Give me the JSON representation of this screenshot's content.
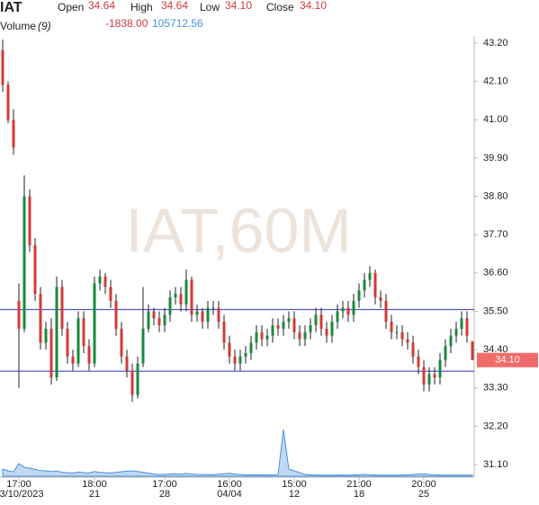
{
  "chart_data": {
    "type": "candlestick",
    "header": {
      "symbol": "IAT",
      "fields": [
        {
          "label": "Open",
          "value": "34.64"
        },
        {
          "label": "High",
          "value": "34.64"
        },
        {
          "label": "Low",
          "value": "34.10"
        },
        {
          "label": "Close",
          "value": "34.10"
        }
      ],
      "volume_label": "Volume",
      "volume_param": "(9)",
      "volume_values": [
        "-1838.00",
        "105712.56"
      ]
    },
    "watermark": "IAT,60M",
    "ylim": [
      31.1,
      43.2
    ],
    "yticks": [
      {
        "value": 43.2,
        "label": "43.20"
      },
      {
        "value": 42.1,
        "label": "42.10"
      },
      {
        "value": 41.0,
        "label": "41.00"
      },
      {
        "value": 39.9,
        "label": "39.90"
      },
      {
        "value": 38.8,
        "label": "38.80"
      },
      {
        "value": 37.7,
        "label": "37.70"
      },
      {
        "value": 36.6,
        "label": "36.60"
      },
      {
        "value": 35.5,
        "label": "35.50"
      },
      {
        "value": 34.4,
        "label": "34.40"
      },
      {
        "value": 33.3,
        "label": "33.30"
      },
      {
        "value": 32.2,
        "label": "32.20"
      },
      {
        "value": 31.1,
        "label": "31.10"
      }
    ],
    "xticks": [
      {
        "value": 3,
        "label": "17:00",
        "sublabel": "03/10/2023"
      },
      {
        "value": 17,
        "label": "18:00",
        "sublabel": "21"
      },
      {
        "value": 30,
        "label": "17:00",
        "sublabel": "28"
      },
      {
        "value": 42,
        "label": "16:00",
        "sublabel": "04/04"
      },
      {
        "value": 54,
        "label": "15:00",
        "sublabel": "12"
      },
      {
        "value": 66,
        "label": "21:00",
        "sublabel": "18"
      },
      {
        "value": 78,
        "label": "20:00",
        "sublabel": "25"
      }
    ],
    "hlines": [
      35.55,
      33.78
    ],
    "hline_color": "#5555cc",
    "up_color": "#1a8a3a",
    "down_color": "#d33a3a",
    "last_price": {
      "value": 34.1,
      "label": "34.10",
      "color": "#f26b6b"
    },
    "open": [
      43.0,
      42.0,
      41.0,
      35.8,
      35.0,
      38.8,
      37.4,
      36.0,
      34.6,
      35.0,
      33.6,
      36.2,
      35.0,
      34.2,
      34.0,
      35.3,
      34.5,
      34.0,
      36.3,
      36.5,
      36.2,
      35.8,
      35.0,
      34.2,
      33.8,
      33.1,
      34.0,
      35.0,
      35.5,
      35.3,
      35.1,
      35.4,
      35.9,
      36.0,
      35.7,
      36.4,
      35.4,
      35.5,
      35.2,
      35.6,
      35.6,
      35.2,
      34.6,
      34.2,
      34.0,
      34.2,
      34.3,
      34.6,
      34.9,
      34.7,
      34.8,
      35.1,
      35.0,
      35.2,
      35.3,
      34.9,
      34.7,
      34.9,
      35.1,
      35.4,
      35.0,
      34.8,
      35.2,
      35.5,
      35.6,
      35.4,
      35.8,
      36.1,
      36.4,
      36.6,
      35.9,
      35.8,
      35.2,
      34.9,
      34.9,
      34.7,
      34.6,
      34.2,
      33.9,
      33.4,
      33.7,
      33.6,
      34.1,
      34.5,
      34.8,
      35.0,
      35.3,
      34.64
    ],
    "high": [
      43.3,
      42.1,
      41.3,
      36.3,
      39.4,
      39.0,
      37.6,
      36.2,
      35.2,
      35.3,
      36.5,
      36.4,
      35.2,
      34.4,
      35.5,
      35.5,
      34.7,
      36.5,
      36.7,
      36.6,
      36.4,
      36.0,
      35.2,
      34.4,
      34.0,
      34.2,
      36.2,
      35.7,
      35.6,
      35.5,
      35.6,
      36.1,
      36.2,
      36.2,
      36.7,
      36.5,
      35.7,
      35.6,
      35.8,
      35.8,
      35.8,
      35.4,
      34.8,
      34.4,
      34.4,
      34.5,
      34.8,
      35.1,
      35.1,
      35.0,
      35.3,
      35.3,
      35.4,
      35.5,
      35.5,
      35.1,
      35.1,
      35.3,
      35.6,
      35.6,
      35.2,
      35.4,
      35.7,
      35.8,
      35.8,
      36.0,
      36.3,
      36.6,
      36.8,
      36.7,
      36.1,
      36.0,
      35.4,
      35.1,
      35.1,
      34.9,
      34.8,
      34.4,
      34.1,
      33.9,
      33.9,
      34.3,
      34.7,
      35.0,
      35.2,
      35.5,
      35.5,
      34.64
    ],
    "low": [
      41.8,
      40.9,
      40.0,
      33.3,
      34.9,
      37.2,
      35.8,
      34.4,
      34.4,
      33.4,
      33.5,
      34.8,
      34.0,
      33.8,
      33.9,
      34.3,
      33.8,
      33.9,
      36.1,
      36.0,
      35.6,
      34.8,
      34.0,
      33.6,
      32.9,
      33.0,
      33.9,
      34.9,
      35.1,
      34.9,
      34.9,
      35.2,
      35.7,
      35.5,
      35.5,
      35.2,
      35.2,
      35.0,
      35.0,
      35.4,
      35.0,
      34.4,
      34.0,
      33.8,
      33.8,
      34.0,
      34.1,
      34.4,
      34.5,
      34.5,
      34.6,
      34.8,
      34.8,
      35.0,
      34.7,
      34.5,
      34.5,
      34.7,
      34.9,
      34.8,
      34.6,
      34.6,
      35.0,
      35.3,
      35.2,
      35.2,
      35.6,
      35.9,
      36.2,
      35.7,
      35.6,
      35.0,
      34.7,
      34.7,
      34.5,
      34.4,
      34.0,
      33.7,
      33.2,
      33.2,
      33.4,
      33.4,
      33.9,
      34.3,
      34.6,
      34.8,
      34.6,
      34.1
    ],
    "close": [
      42.0,
      41.0,
      40.2,
      35.0,
      38.8,
      37.4,
      36.0,
      34.6,
      35.0,
      33.6,
      36.2,
      35.0,
      34.2,
      34.0,
      35.3,
      34.5,
      34.0,
      36.3,
      36.5,
      36.2,
      35.8,
      35.0,
      34.2,
      33.8,
      33.1,
      34.0,
      35.0,
      35.5,
      35.3,
      35.1,
      35.4,
      35.9,
      36.0,
      35.7,
      36.4,
      35.4,
      35.5,
      35.2,
      35.6,
      35.6,
      35.2,
      34.6,
      34.2,
      34.0,
      34.2,
      34.3,
      34.6,
      34.9,
      34.7,
      34.8,
      35.1,
      35.0,
      35.2,
      35.3,
      34.9,
      34.7,
      34.9,
      35.1,
      35.4,
      35.0,
      34.8,
      35.2,
      35.5,
      35.6,
      35.4,
      35.8,
      36.1,
      36.4,
      36.6,
      35.9,
      35.8,
      35.2,
      34.9,
      34.9,
      34.7,
      34.6,
      34.2,
      33.9,
      33.4,
      33.7,
      33.6,
      34.1,
      34.5,
      34.8,
      35.0,
      35.3,
      34.8,
      34.1
    ],
    "volume": [
      40000,
      30000,
      25000,
      70000,
      50000,
      45000,
      38000,
      32000,
      30000,
      26000,
      30000,
      22000,
      20000,
      18000,
      24000,
      20000,
      18000,
      26000,
      22000,
      20000,
      18000,
      22000,
      25000,
      28000,
      30000,
      26000,
      22000,
      18000,
      12000,
      10000,
      10000,
      12000,
      14000,
      12000,
      16000,
      12000,
      10000,
      9000,
      10000,
      8000,
      12000,
      14000,
      16000,
      12000,
      10000,
      8000,
      8000,
      7000,
      8000,
      7000,
      8000,
      9000,
      260000,
      40000,
      30000,
      20000,
      10000,
      8000,
      7000,
      6000,
      6000,
      6000,
      7000,
      6000,
      6000,
      7000,
      8000,
      10000,
      8000,
      7000,
      6000,
      6000,
      6000,
      6000,
      7000,
      8000,
      10000,
      12000,
      14000,
      10000,
      8000,
      7000,
      6000,
      6000,
      6000,
      6000,
      6000,
      6000
    ],
    "volume_color": "#4a90d9"
  }
}
